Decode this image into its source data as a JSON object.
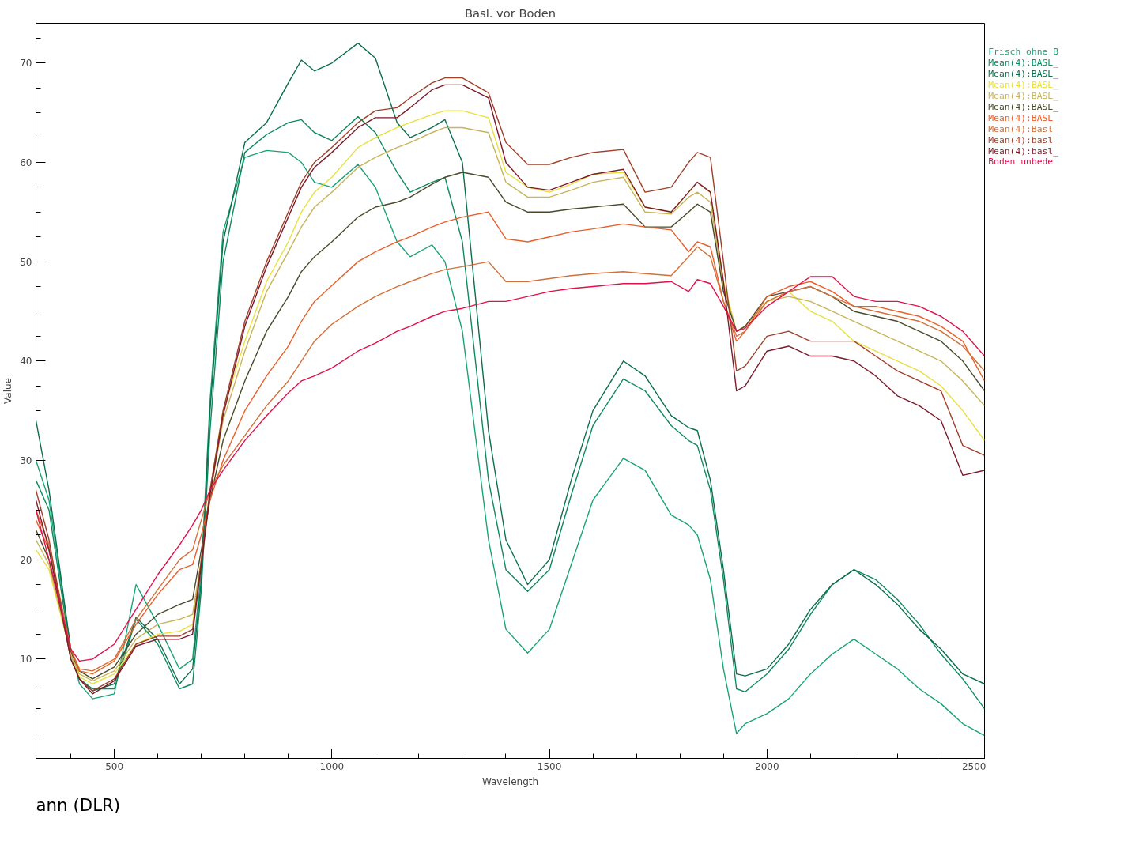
{
  "chart_data": {
    "type": "line",
    "title": "Basl. vor Boden",
    "xlabel": "Wavelength",
    "ylabel": "Value",
    "x": [
      320,
      350,
      400,
      420,
      450,
      500,
      550,
      600,
      650,
      680,
      700,
      720,
      750,
      800,
      850,
      900,
      930,
      960,
      1000,
      1060,
      1100,
      1150,
      1180,
      1230,
      1260,
      1300,
      1360,
      1400,
      1450,
      1500,
      1550,
      1600,
      1670,
      1720,
      1780,
      1820,
      1840,
      1870,
      1900,
      1930,
      1950,
      2000,
      2050,
      2100,
      2150,
      2200,
      2250,
      2300,
      2350,
      2400,
      2450,
      2500
    ],
    "series": [
      {
        "name": "Frisch ohne B",
        "color": "#1aa37a",
        "values": [
          30,
          26,
          11,
          7.5,
          6,
          6.5,
          17.5,
          13.5,
          9,
          10,
          19,
          36,
          53,
          60.5,
          61.2,
          61,
          60,
          58,
          57.5,
          59.8,
          57.5,
          52,
          50.5,
          51.7,
          50,
          43,
          22,
          13,
          10.6,
          13,
          19.5,
          26,
          30.2,
          29,
          24.5,
          23.5,
          22.5,
          18,
          9,
          2.5,
          3.5,
          4.5,
          6,
          8.5,
          10.5,
          12,
          10.5,
          9,
          7,
          5.5,
          3.5,
          2.3
        ]
      },
      {
        "name": "Mean(4):BASL_",
        "color": "#0e8a5e",
        "values": [
          28,
          25,
          10.5,
          8,
          7,
          7,
          14,
          11.5,
          7,
          7.5,
          17,
          33,
          50,
          61,
          62.8,
          64,
          64.3,
          63,
          62.2,
          64.6,
          63,
          59,
          57,
          58,
          58.5,
          52,
          28,
          19,
          16.8,
          19,
          26.5,
          33.5,
          38.2,
          37,
          33.5,
          32,
          31.5,
          27,
          18,
          7,
          6.7,
          8.5,
          11,
          14.5,
          17.5,
          19,
          18,
          16,
          13.5,
          10.5,
          8,
          5
        ]
      },
      {
        "name": "Mean(4):BASL_",
        "color": "#0b6e4f",
        "values": [
          34,
          27,
          11,
          8,
          6.8,
          7.5,
          14.2,
          12,
          7.5,
          9,
          18,
          35,
          52,
          62,
          64,
          68,
          70.3,
          69.2,
          70,
          72,
          70.5,
          64,
          62.5,
          63.5,
          64.3,
          60,
          33,
          22,
          17.5,
          20,
          28,
          35,
          40,
          38.5,
          34.5,
          33.3,
          33,
          28,
          19,
          8.5,
          8.3,
          9,
          11.5,
          15,
          17.5,
          19,
          17.5,
          15.5,
          13,
          11,
          8.5,
          7.5
        ]
      },
      {
        "name": "Mean(4):BASL_",
        "color": "#e8e03c",
        "values": [
          21,
          19,
          10.5,
          8.2,
          7.5,
          8.5,
          11.5,
          12.5,
          12.8,
          13.5,
          20,
          27,
          35,
          42,
          48,
          52,
          55,
          57,
          58.5,
          61.5,
          62.5,
          63.5,
          64,
          64.8,
          65.2,
          65.2,
          64.5,
          59,
          57.5,
          57,
          57.8,
          58.8,
          59,
          55.5,
          55,
          57,
          58,
          57,
          48,
          43,
          43.5,
          46,
          47,
          45,
          44,
          42,
          41,
          40,
          39,
          37.5,
          35,
          32
        ]
      },
      {
        "name": "Mean(4):BASL_",
        "color": "#c8b45a",
        "values": [
          22,
          19.5,
          10.5,
          8.5,
          7.8,
          8.8,
          12,
          13.5,
          14,
          14.5,
          20,
          26.5,
          34,
          41,
          47,
          51,
          53.5,
          55.5,
          57,
          59.5,
          60.5,
          61.5,
          62,
          63,
          63.5,
          63.5,
          63,
          58,
          56.5,
          56.5,
          57.2,
          58,
          58.5,
          55,
          54.8,
          56.5,
          57,
          56,
          47.5,
          43,
          43.5,
          46,
          46.5,
          46,
          45,
          44,
          43,
          42,
          41,
          40,
          38,
          35.5
        ]
      },
      {
        "name": "Mean(4):BASL_",
        "color": "#4a4a2a",
        "values": [
          23,
          20,
          10.8,
          8.8,
          8,
          9.2,
          12.5,
          14.5,
          15.5,
          16,
          21,
          26,
          32,
          38,
          43,
          46.5,
          49,
          50.5,
          52,
          54.5,
          55.5,
          56,
          56.5,
          57.8,
          58.5,
          59,
          58.5,
          56,
          55,
          55,
          55.3,
          55.5,
          55.8,
          53.5,
          53.5,
          55,
          55.8,
          55,
          47,
          43,
          43.5,
          46.5,
          47,
          47.5,
          46.5,
          45,
          44.5,
          44,
          43,
          42,
          40,
          37
        ]
      },
      {
        "name": "Mean(4):BASL_",
        "color": "#e8602a",
        "values": [
          24,
          21,
          11,
          8.8,
          8.5,
          9.8,
          13.5,
          16.5,
          19,
          19.5,
          22.5,
          26,
          30,
          35,
          38.5,
          41.5,
          44,
          46,
          47.6,
          50,
          51,
          52,
          52.5,
          53.5,
          54,
          54.5,
          55,
          52.3,
          52,
          52.5,
          53,
          53.3,
          53.8,
          53.5,
          53.2,
          51,
          52,
          51.5,
          46,
          42,
          43,
          46.5,
          47.5,
          48,
          47,
          45.5,
          45.5,
          45,
          44.5,
          43.5,
          42,
          38
        ]
      },
      {
        "name": "Mean(4):Basl_",
        "color": "#d2703a",
        "values": [
          25,
          21.5,
          11,
          9,
          8.8,
          10,
          14,
          17,
          20,
          21,
          24,
          27,
          29.5,
          32.5,
          35.5,
          38,
          40,
          42,
          43.7,
          45.5,
          46.5,
          47.5,
          48,
          48.8,
          49.2,
          49.5,
          50,
          48,
          48,
          48.3,
          48.6,
          48.8,
          49,
          48.8,
          48.6,
          50.5,
          51.5,
          50.5,
          46,
          42.5,
          43,
          46,
          47,
          47.5,
          46.5,
          45.5,
          45,
          44.5,
          44,
          43,
          41.5,
          39
        ]
      },
      {
        "name": "Mean(4):basl_",
        "color": "#a0402a",
        "values": [
          27,
          22,
          10,
          8,
          6.8,
          8,
          11.5,
          12.3,
          12.3,
          13,
          20,
          27,
          35,
          44,
          50,
          55,
          58,
          60,
          61.5,
          64,
          65.2,
          65.5,
          66.5,
          68,
          68.5,
          68.5,
          67,
          62,
          59.8,
          59.8,
          60.5,
          61,
          61.3,
          57,
          57.5,
          60,
          61,
          60.5,
          50,
          39,
          39.5,
          42.5,
          43,
          42,
          42,
          42,
          40.5,
          39,
          38,
          37,
          31.5,
          30.5
        ]
      },
      {
        "name": "Mean(4):basl_",
        "color": "#7a1a2a",
        "values": [
          26,
          21,
          10,
          8,
          6.5,
          7.8,
          11.3,
          12,
          12,
          12.5,
          19.5,
          26.5,
          34.5,
          43.5,
          49.5,
          54.5,
          57.5,
          59.5,
          61,
          63.5,
          64.5,
          64.5,
          65.5,
          67.3,
          67.8,
          67.8,
          66.5,
          60,
          57.5,
          57.2,
          58,
          58.8,
          59.3,
          55.5,
          55,
          57,
          58,
          57,
          48,
          37,
          37.5,
          41,
          41.5,
          40.5,
          40.5,
          40,
          38.5,
          36.5,
          35.5,
          34,
          28.5,
          29
        ]
      },
      {
        "name": "Boden unbede",
        "color": "#e0104a",
        "values": [
          25,
          20,
          11,
          9.8,
          10,
          11.5,
          15,
          18.5,
          21.5,
          23.5,
          25,
          27,
          29,
          32,
          34.5,
          36.8,
          38,
          38.5,
          39.3,
          41,
          41.8,
          43,
          43.5,
          44.5,
          45,
          45.3,
          46,
          46,
          46.5,
          47,
          47.3,
          47.5,
          47.8,
          47.8,
          48,
          47,
          48.2,
          47.8,
          45.5,
          43,
          43.3,
          45.5,
          47,
          48.5,
          48.5,
          46.5,
          46,
          46,
          45.5,
          44.5,
          43,
          40.5
        ]
      }
    ],
    "xlim": [
      320,
      2500
    ],
    "ylim": [
      0,
      74
    ],
    "xticks": [
      500,
      1000,
      1500,
      2000,
      2500
    ],
    "yticks": [
      10,
      20,
      30,
      40,
      50,
      60,
      70
    ],
    "grid": false,
    "legend": "top right",
    "marker": "none",
    "line_style": "solid",
    "annotations": [
      "ann (DLR)"
    ]
  }
}
